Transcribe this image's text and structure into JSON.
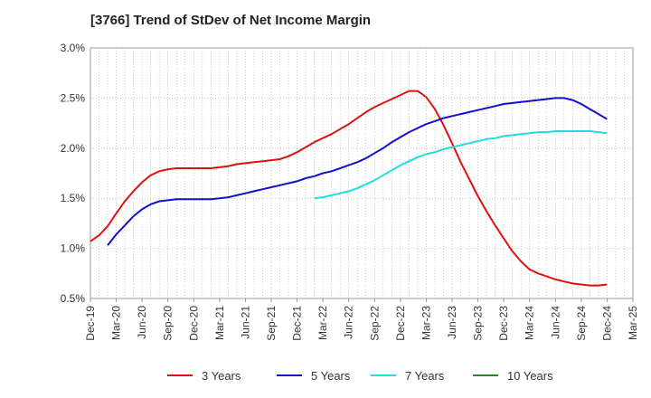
{
  "chart_data": {
    "type": "line",
    "title": "[3766]  Trend of StDev of Net Income Margin",
    "xlabel": "",
    "ylabel": "",
    "x_categories": [
      "Dec-19",
      "Mar-20",
      "Jun-20",
      "Sep-20",
      "Dec-20",
      "Mar-21",
      "Jun-21",
      "Sep-21",
      "Dec-21",
      "Mar-22",
      "Jun-22",
      "Sep-22",
      "Dec-22",
      "Mar-23",
      "Jun-23",
      "Sep-23",
      "Dec-23",
      "Mar-24",
      "Jun-24",
      "Sep-24",
      "Dec-24",
      "Mar-25"
    ],
    "ylim": [
      0.5,
      3.0
    ],
    "y_ticks": [
      "0.5%",
      "1.0%",
      "1.5%",
      "2.0%",
      "2.5%",
      "3.0%"
    ],
    "grid": "vertical-dotted-monthly, horizontal-dotted",
    "legend_position": "bottom",
    "series": [
      {
        "name": "3 Years",
        "color": "#dd1111",
        "points": [
          [
            "Dec-19",
            1.07
          ],
          [
            "Jan-20",
            1.13
          ],
          [
            "Feb-20",
            1.22
          ],
          [
            "Mar-20",
            1.35
          ],
          [
            "Apr-20",
            1.47
          ],
          [
            "May-20",
            1.57
          ],
          [
            "Jun-20",
            1.66
          ],
          [
            "Jul-20",
            1.73
          ],
          [
            "Aug-20",
            1.77
          ],
          [
            "Sep-20",
            1.79
          ],
          [
            "Oct-20",
            1.8
          ],
          [
            "Nov-20",
            1.8
          ],
          [
            "Dec-20",
            1.8
          ],
          [
            "Jan-21",
            1.8
          ],
          [
            "Feb-21",
            1.8
          ],
          [
            "Mar-21",
            1.81
          ],
          [
            "Apr-21",
            1.82
          ],
          [
            "May-21",
            1.84
          ],
          [
            "Jun-21",
            1.85
          ],
          [
            "Jul-21",
            1.86
          ],
          [
            "Aug-21",
            1.87
          ],
          [
            "Sep-21",
            1.88
          ],
          [
            "Oct-21",
            1.89
          ],
          [
            "Nov-21",
            1.92
          ],
          [
            "Dec-21",
            1.96
          ],
          [
            "Jan-22",
            2.01
          ],
          [
            "Feb-22",
            2.06
          ],
          [
            "Mar-22",
            2.1
          ],
          [
            "Apr-22",
            2.14
          ],
          [
            "May-22",
            2.19
          ],
          [
            "Jun-22",
            2.24
          ],
          [
            "Jul-22",
            2.3
          ],
          [
            "Aug-22",
            2.36
          ],
          [
            "Sep-22",
            2.41
          ],
          [
            "Oct-22",
            2.45
          ],
          [
            "Nov-22",
            2.49
          ],
          [
            "Dec-22",
            2.53
          ],
          [
            "Jan-23",
            2.57
          ],
          [
            "Feb-23",
            2.57
          ],
          [
            "Mar-23",
            2.51
          ],
          [
            "Apr-23",
            2.39
          ],
          [
            "May-23",
            2.23
          ],
          [
            "Jun-23",
            2.05
          ],
          [
            "Jul-23",
            1.86
          ],
          [
            "Aug-23",
            1.69
          ],
          [
            "Sep-23",
            1.52
          ],
          [
            "Oct-23",
            1.37
          ],
          [
            "Nov-23",
            1.23
          ],
          [
            "Dec-23",
            1.1
          ],
          [
            "Jan-24",
            0.97
          ],
          [
            "Feb-24",
            0.87
          ],
          [
            "Mar-24",
            0.79
          ],
          [
            "Apr-24",
            0.75
          ],
          [
            "May-24",
            0.72
          ],
          [
            "Jun-24",
            0.69
          ],
          [
            "Jul-24",
            0.67
          ],
          [
            "Aug-24",
            0.65
          ],
          [
            "Sep-24",
            0.64
          ],
          [
            "Oct-24",
            0.63
          ],
          [
            "Nov-24",
            0.63
          ],
          [
            "Dec-24",
            0.64
          ]
        ]
      },
      {
        "name": "5 Years",
        "color": "#1111cc",
        "points": [
          [
            "Feb-20",
            1.03
          ],
          [
            "Mar-20",
            1.14
          ],
          [
            "Apr-20",
            1.23
          ],
          [
            "May-20",
            1.32
          ],
          [
            "Jun-20",
            1.39
          ],
          [
            "Jul-20",
            1.44
          ],
          [
            "Aug-20",
            1.47
          ],
          [
            "Sep-20",
            1.48
          ],
          [
            "Oct-20",
            1.49
          ],
          [
            "Nov-20",
            1.49
          ],
          [
            "Dec-20",
            1.49
          ],
          [
            "Jan-21",
            1.49
          ],
          [
            "Feb-21",
            1.49
          ],
          [
            "Mar-21",
            1.5
          ],
          [
            "Apr-21",
            1.51
          ],
          [
            "May-21",
            1.53
          ],
          [
            "Jun-21",
            1.55
          ],
          [
            "Jul-21",
            1.57
          ],
          [
            "Aug-21",
            1.59
          ],
          [
            "Sep-21",
            1.61
          ],
          [
            "Oct-21",
            1.63
          ],
          [
            "Nov-21",
            1.65
          ],
          [
            "Dec-21",
            1.67
          ],
          [
            "Jan-22",
            1.7
          ],
          [
            "Feb-22",
            1.72
          ],
          [
            "Mar-22",
            1.75
          ],
          [
            "Apr-22",
            1.77
          ],
          [
            "May-22",
            1.8
          ],
          [
            "Jun-22",
            1.83
          ],
          [
            "Jul-22",
            1.86
          ],
          [
            "Aug-22",
            1.9
          ],
          [
            "Sep-22",
            1.95
          ],
          [
            "Oct-22",
            2.0
          ],
          [
            "Nov-22",
            2.06
          ],
          [
            "Dec-22",
            2.11
          ],
          [
            "Jan-23",
            2.16
          ],
          [
            "Feb-23",
            2.2
          ],
          [
            "Mar-23",
            2.24
          ],
          [
            "Apr-23",
            2.27
          ],
          [
            "May-23",
            2.3
          ],
          [
            "Jun-23",
            2.32
          ],
          [
            "Jul-23",
            2.34
          ],
          [
            "Aug-23",
            2.36
          ],
          [
            "Sep-23",
            2.38
          ],
          [
            "Oct-23",
            2.4
          ],
          [
            "Nov-23",
            2.42
          ],
          [
            "Dec-23",
            2.44
          ],
          [
            "Jan-24",
            2.45
          ],
          [
            "Feb-24",
            2.46
          ],
          [
            "Mar-24",
            2.47
          ],
          [
            "Apr-24",
            2.48
          ],
          [
            "May-24",
            2.49
          ],
          [
            "Jun-24",
            2.5
          ],
          [
            "Jul-24",
            2.5
          ],
          [
            "Aug-24",
            2.48
          ],
          [
            "Sep-24",
            2.44
          ],
          [
            "Oct-24",
            2.39
          ],
          [
            "Nov-24",
            2.34
          ],
          [
            "Dec-24",
            2.29
          ]
        ]
      },
      {
        "name": "7 Years",
        "color": "#22dddd",
        "points": [
          [
            "Feb-22",
            1.5
          ],
          [
            "Mar-22",
            1.51
          ],
          [
            "Apr-22",
            1.53
          ],
          [
            "May-22",
            1.55
          ],
          [
            "Jun-22",
            1.57
          ],
          [
            "Jul-22",
            1.6
          ],
          [
            "Aug-22",
            1.64
          ],
          [
            "Sep-22",
            1.68
          ],
          [
            "Oct-22",
            1.73
          ],
          [
            "Nov-22",
            1.78
          ],
          [
            "Dec-22",
            1.83
          ],
          [
            "Jan-23",
            1.87
          ],
          [
            "Feb-23",
            1.91
          ],
          [
            "Mar-23",
            1.94
          ],
          [
            "Apr-23",
            1.96
          ],
          [
            "May-23",
            1.99
          ],
          [
            "Jun-23",
            2.01
          ],
          [
            "Jul-23",
            2.03
          ],
          [
            "Aug-23",
            2.05
          ],
          [
            "Sep-23",
            2.07
          ],
          [
            "Oct-23",
            2.09
          ],
          [
            "Nov-23",
            2.1
          ],
          [
            "Dec-23",
            2.12
          ],
          [
            "Jan-24",
            2.13
          ],
          [
            "Feb-24",
            2.14
          ],
          [
            "Mar-24",
            2.15
          ],
          [
            "Apr-24",
            2.16
          ],
          [
            "May-24",
            2.16
          ],
          [
            "Jun-24",
            2.17
          ],
          [
            "Jul-24",
            2.17
          ],
          [
            "Aug-24",
            2.17
          ],
          [
            "Sep-24",
            2.17
          ],
          [
            "Oct-24",
            2.17
          ],
          [
            "Nov-24",
            2.16
          ],
          [
            "Dec-24",
            2.15
          ]
        ]
      },
      {
        "name": "10 Years",
        "color": "#228822",
        "points": []
      }
    ]
  }
}
